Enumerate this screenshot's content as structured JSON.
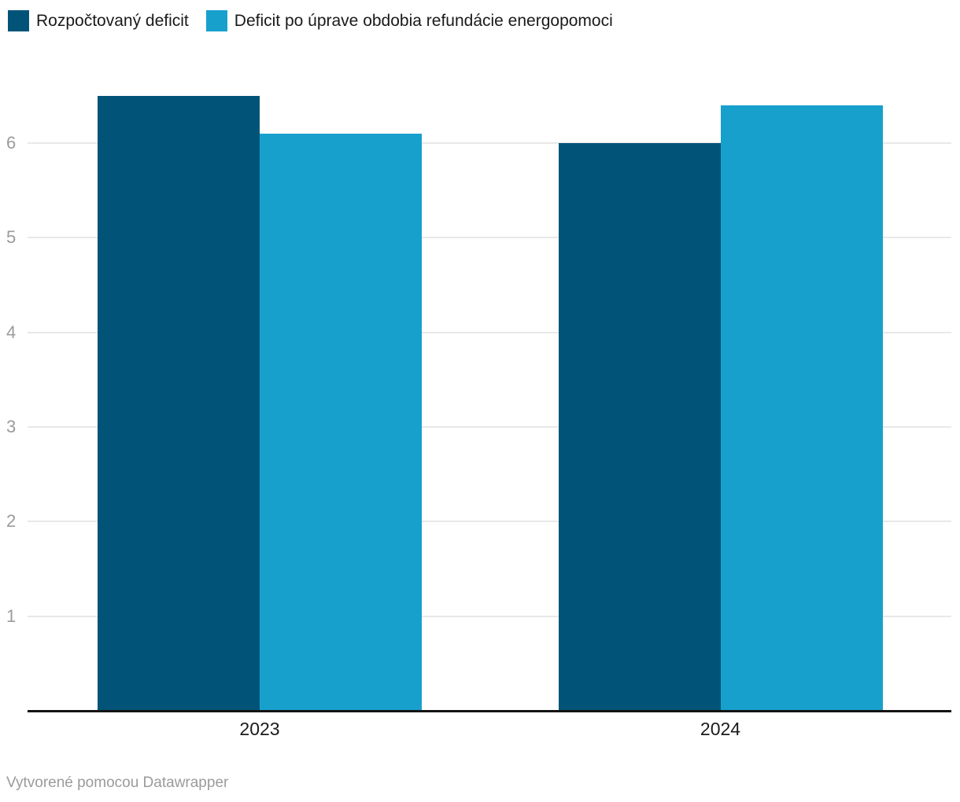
{
  "legend": {
    "items": [
      {
        "label": "Rozpočtovaný deficit",
        "color": "#015478"
      },
      {
        "label": "Deficit po úprave obdobia refundácie energopomoci",
        "color": "#18a0cd"
      }
    ]
  },
  "footer": {
    "attribution": "Vytvorené pomocou Datawrapper"
  },
  "colors": {
    "series_dark": "#015478",
    "series_light": "#18a0cd",
    "gridline": "#e8e8e8",
    "axis_line": "#141414",
    "tick_label_gray": "#9b9b9b",
    "text_dark": "#1a1a1a"
  },
  "chart_data": {
    "type": "bar",
    "categories": [
      "2023",
      "2024"
    ],
    "series": [
      {
        "name": "Rozpočtovaný deficit",
        "color": "#015478",
        "values": [
          6.5,
          6.0
        ]
      },
      {
        "name": "Deficit po úprave obdobia refundácie energopomoci",
        "color": "#18a0cd",
        "values": [
          6.1,
          6.4
        ]
      }
    ],
    "y_ticks": [
      1,
      2,
      3,
      4,
      5,
      6
    ],
    "ylim": [
      0,
      6.7
    ],
    "grid": true,
    "legend_position": "top-left"
  }
}
